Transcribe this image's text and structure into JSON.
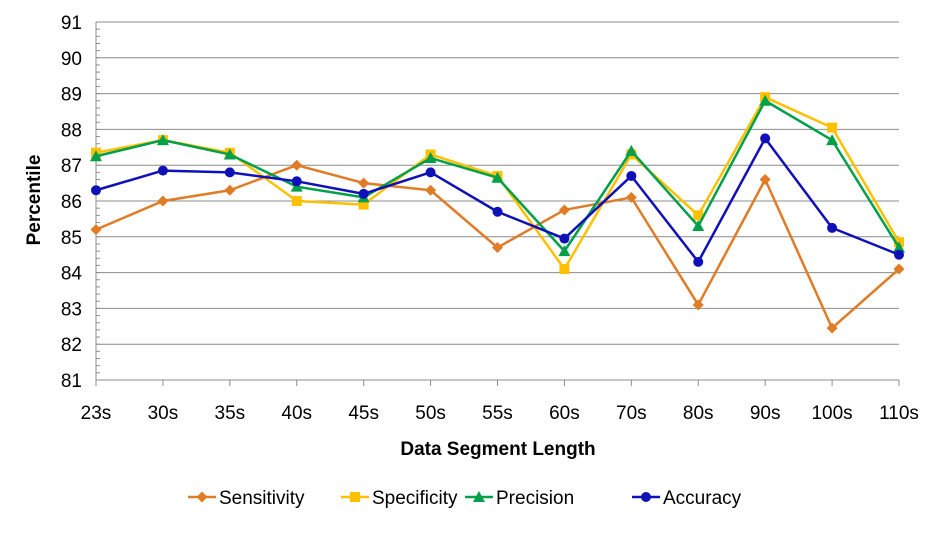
{
  "chart_data": {
    "type": "line",
    "title": "",
    "xlabel": "Data Segment Length",
    "ylabel": "Percentile",
    "ylim": [
      81,
      91
    ],
    "yticks": [
      81,
      82,
      83,
      84,
      85,
      86,
      87,
      88,
      89,
      90,
      91
    ],
    "grid": "horizontal",
    "legend_position": "bottom",
    "categories": [
      "23s",
      "30s",
      "35s",
      "40s",
      "45s",
      "50s",
      "55s",
      "60s",
      "70s",
      "80s",
      "90s",
      "100s",
      "110s"
    ],
    "series": [
      {
        "name": "Sensitivity",
        "color": "#E07B26",
        "marker": "diamond",
        "values": [
          85.2,
          86.0,
          86.3,
          87.0,
          86.5,
          86.3,
          84.7,
          85.75,
          86.1,
          83.1,
          86.6,
          82.45,
          84.1
        ]
      },
      {
        "name": "Specificity",
        "color": "#FFC000",
        "marker": "square",
        "values": [
          87.35,
          87.7,
          87.35,
          86.0,
          85.9,
          87.3,
          86.7,
          84.1,
          87.3,
          85.6,
          88.9,
          88.05,
          84.85
        ]
      },
      {
        "name": "Precision",
        "color": "#00A04B",
        "marker": "triangle",
        "values": [
          87.25,
          87.7,
          87.3,
          86.4,
          86.1,
          87.2,
          86.65,
          84.6,
          87.4,
          85.3,
          88.8,
          87.7,
          84.7
        ]
      },
      {
        "name": "Accuracy",
        "color": "#1010B8",
        "marker": "circle",
        "values": [
          86.3,
          86.85,
          86.8,
          86.55,
          86.2,
          86.8,
          85.7,
          84.95,
          86.7,
          84.3,
          87.75,
          85.25,
          84.5
        ]
      }
    ]
  }
}
